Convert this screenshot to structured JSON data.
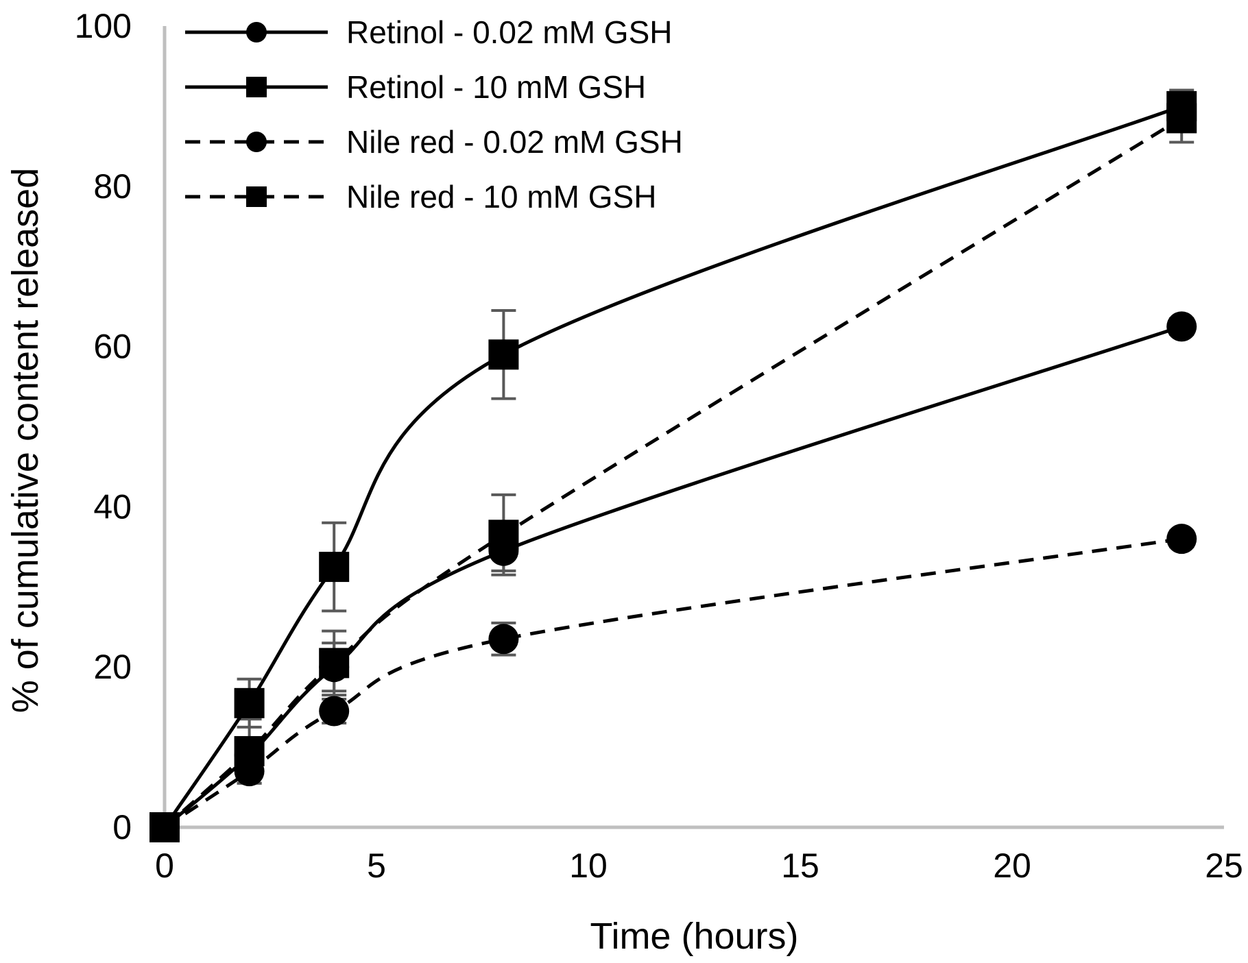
{
  "chart_data": {
    "type": "line",
    "title": "",
    "xlabel": "Time (hours)",
    "ylabel": "% of cumulative content released",
    "xlim": [
      0,
      25
    ],
    "ylim": [
      0,
      100
    ],
    "xticks": [
      "0",
      "5",
      "10",
      "15",
      "20",
      "25"
    ],
    "yticks": [
      "0",
      "20",
      "40",
      "60",
      "80",
      "100"
    ],
    "grid": false,
    "legend_position": "top-left",
    "x": [
      0,
      2,
      4,
      8,
      24
    ],
    "series": [
      {
        "name": "Retinol - 0.02 mM GSH",
        "marker": "circle",
        "line": "solid",
        "values": [
          0,
          9,
          20,
          34.5,
          62.5
        ],
        "errors": [
          0,
          2,
          3,
          2.5,
          1
        ]
      },
      {
        "name": "Retinol - 10 mM GSH",
        "marker": "square",
        "line": "solid",
        "values": [
          0,
          15.5,
          32.5,
          59,
          90
        ],
        "errors": [
          0,
          3,
          5.5,
          5.5,
          2
        ]
      },
      {
        "name": "Nile red - 0.02 mM GSH",
        "marker": "circle",
        "line": "dashed",
        "values": [
          0,
          7,
          14.5,
          23.5,
          36
        ],
        "errors": [
          0,
          1.5,
          1.5,
          2,
          1
        ]
      },
      {
        "name": "Nile red - 10 mM GSH",
        "marker": "square",
        "line": "dashed",
        "values": [
          0,
          9.5,
          20.5,
          36.5,
          88.5
        ],
        "errors": [
          0,
          4,
          4,
          5,
          3
        ]
      }
    ],
    "colors": {
      "series": "#000000",
      "axis": "#bfbfbf",
      "error_bars": "#595959"
    }
  }
}
